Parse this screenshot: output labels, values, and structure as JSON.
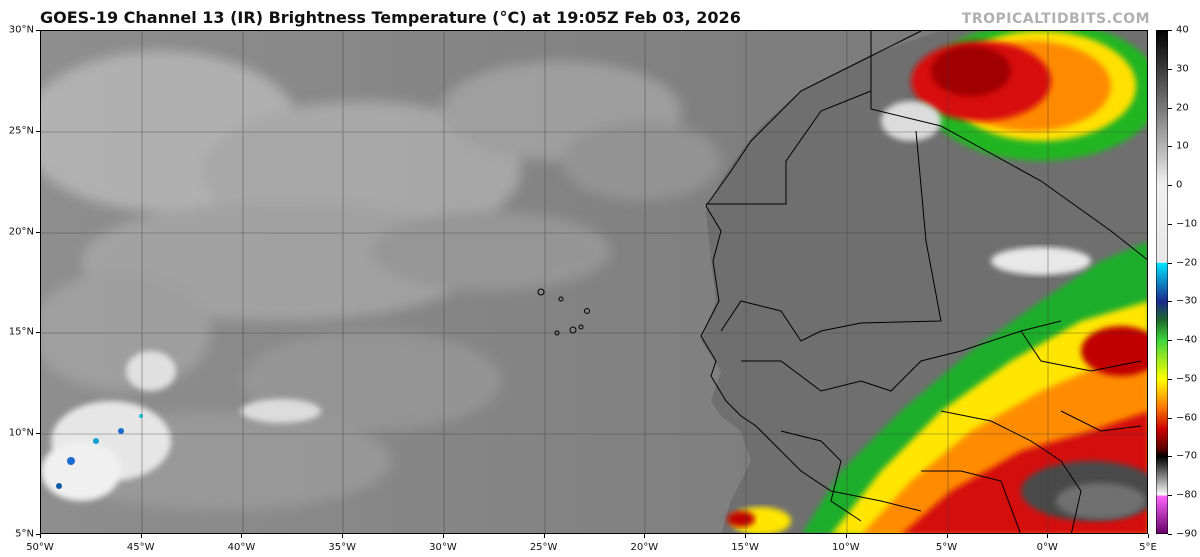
{
  "title": "GOES-19 Channel 13 (IR) Brightness Temperature (°C) at 19:05Z Feb 03, 2026",
  "watermark": "TROPICALTIDBITS.COM",
  "lat_labels": [
    "30°N",
    "25°N",
    "20°N",
    "15°N",
    "10°N",
    "5°N"
  ],
  "lon_labels": [
    "50°W",
    "45°W",
    "40°W",
    "35°W",
    "30°W",
    "25°W",
    "20°W",
    "15°W",
    "10°W",
    "5°W",
    "0°W",
    "5°E"
  ],
  "colorbar": {
    "labels": [
      "40",
      "30",
      "20",
      "10",
      "0",
      "−10",
      "−20",
      "−30",
      "−40",
      "−50",
      "−60",
      "−70",
      "−80",
      "−90"
    ],
    "min": -90,
    "max": 40,
    "stops": [
      {
        "t": 40,
        "color": "#000000"
      },
      {
        "t": 0,
        "color": "#f0f0f0"
      },
      {
        "t": -20,
        "color": "#e8e8e8"
      },
      {
        "t": -20.1,
        "color": "#00e5ff"
      },
      {
        "t": -30,
        "color": "#1a2a8a"
      },
      {
        "t": -35,
        "color": "#1f6b2a"
      },
      {
        "t": -40,
        "color": "#3dd43d"
      },
      {
        "t": -50,
        "color": "#ffff00"
      },
      {
        "t": -57,
        "color": "#ff7f00"
      },
      {
        "t": -63,
        "color": "#cc0000"
      },
      {
        "t": -68,
        "color": "#5a0000"
      },
      {
        "t": -70,
        "color": "#000000"
      },
      {
        "t": -80,
        "color": "#ffffff"
      },
      {
        "t": -80.1,
        "color": "#ff66ff"
      },
      {
        "t": -90,
        "color": "#660066"
      }
    ]
  },
  "colors": {
    "ocean_base": "#7b7b7b",
    "cloud_light": "#c8c8c8",
    "cold_red": "#cc1010",
    "cold_green": "#22c022",
    "cold_yellow": "#ffee00",
    "cold_orange": "#ff8800"
  }
}
